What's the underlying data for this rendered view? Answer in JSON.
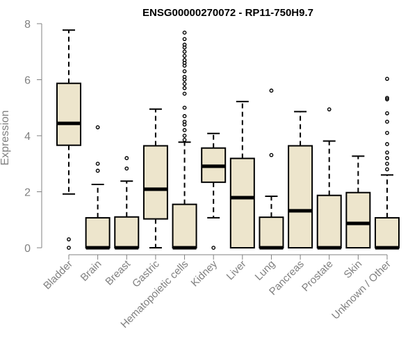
{
  "chart_data": {
    "type": "box",
    "title": "ENSG00000270072 - RP11-750H9.7",
    "xlabel": "",
    "ylabel": "Expression",
    "ylim": [
      0,
      8
    ],
    "yticks": [
      0,
      2,
      4,
      6,
      8
    ],
    "box_color": "#EDE5CC",
    "categories": [
      "Bladder",
      "Brain",
      "Breast",
      "Gastric",
      "Hematopoietic cells",
      "Kidney",
      "Liver",
      "Lung",
      "Pancreas",
      "Prostate",
      "Skin",
      "Unknown / Other"
    ],
    "boxes": [
      {
        "whisker_low": 1.92,
        "q1": 3.66,
        "median": 4.44,
        "q3": 5.87,
        "whisker_high": 7.77,
        "outliers": [
          0.0,
          0.3
        ]
      },
      {
        "whisker_low": 0.0,
        "q1": 0.0,
        "median": 0.0,
        "q3": 1.07,
        "whisker_high": 2.26,
        "outliers": [
          2.75,
          3.0,
          4.3
        ]
      },
      {
        "whisker_low": 0.0,
        "q1": 0.0,
        "median": 0.0,
        "q3": 1.1,
        "whisker_high": 2.38,
        "outliers": [
          2.83,
          3.2
        ]
      },
      {
        "whisker_low": 0.0,
        "q1": 1.03,
        "median": 2.09,
        "q3": 3.64,
        "whisker_high": 4.95,
        "outliers": []
      },
      {
        "whisker_low": 0.0,
        "q1": 0.0,
        "median": 0.0,
        "q3": 1.55,
        "whisker_high": 3.77,
        "outliers": [
          3.85,
          4.0,
          4.2,
          4.4,
          4.5,
          4.7,
          5.0,
          5.5,
          5.7,
          5.85,
          6.0,
          6.1,
          6.3,
          6.5,
          6.6,
          6.7,
          6.85,
          7.0,
          7.15,
          7.25,
          7.45,
          7.68
        ]
      },
      {
        "whisker_low": 1.07,
        "q1": 2.34,
        "median": 2.91,
        "q3": 3.56,
        "whisker_high": 4.08,
        "outliers": [
          0.0
        ]
      },
      {
        "whisker_low": 0.0,
        "q1": 0.0,
        "median": 1.79,
        "q3": 3.19,
        "whisker_high": 5.22,
        "outliers": []
      },
      {
        "whisker_low": 0.0,
        "q1": 0.0,
        "median": 0.0,
        "q3": 1.09,
        "whisker_high": 1.84,
        "outliers": [
          3.31,
          5.61
        ]
      },
      {
        "whisker_low": 0.0,
        "q1": 0.0,
        "median": 1.32,
        "q3": 3.64,
        "whisker_high": 4.86,
        "outliers": []
      },
      {
        "whisker_low": 0.0,
        "q1": 0.0,
        "median": 0.0,
        "q3": 1.87,
        "whisker_high": 3.81,
        "outliers": [
          4.94
        ]
      },
      {
        "whisker_low": 0.0,
        "q1": 0.0,
        "median": 0.87,
        "q3": 1.97,
        "whisker_high": 3.27,
        "outliers": []
      },
      {
        "whisker_low": 0.0,
        "q1": 0.0,
        "median": 0.0,
        "q3": 1.07,
        "whisker_high": 2.6,
        "outliers": [
          2.8,
          3.0,
          3.2,
          3.4,
          3.7,
          4.1,
          4.5,
          4.8,
          5.3,
          5.35,
          6.03
        ]
      }
    ]
  }
}
